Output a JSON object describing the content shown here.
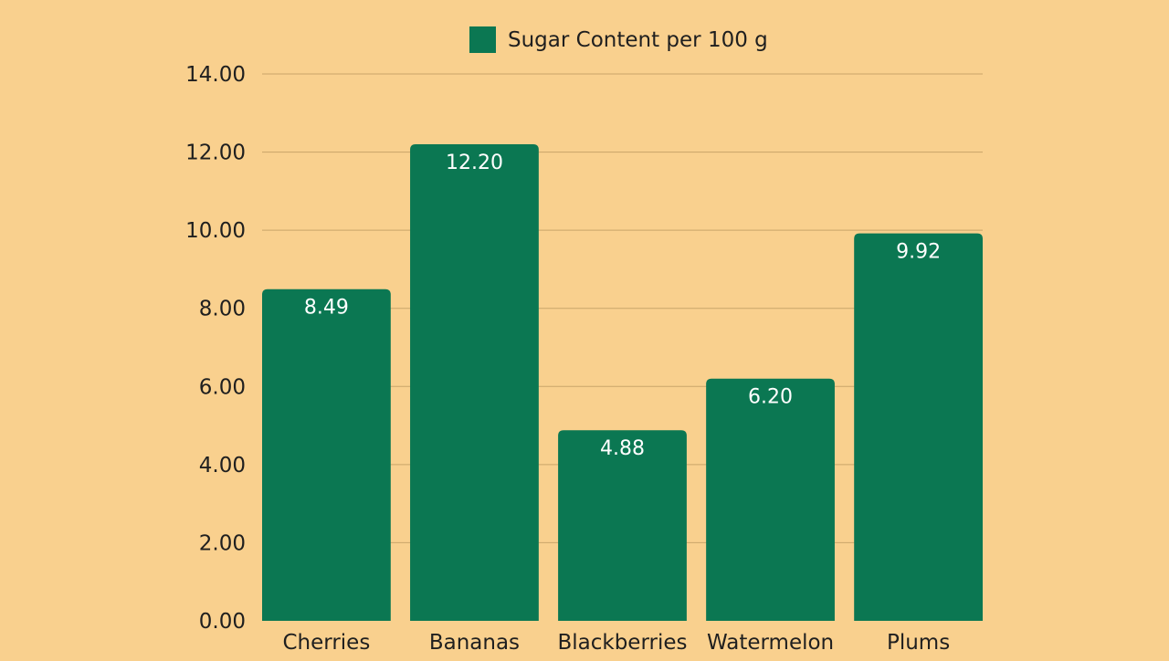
{
  "chart_data": {
    "type": "bar",
    "categories": [
      "Cherries",
      "Bananas",
      "Blackberries",
      "Watermelon",
      "Plums"
    ],
    "series": [
      {
        "name": "Sugar Content per 100 g",
        "values": [
          8.49,
          12.2,
          4.88,
          6.2,
          9.92
        ]
      }
    ],
    "data_labels": [
      "8.49",
      "12.20",
      "4.88",
      "6.20",
      "9.92"
    ],
    "y_ticks": [
      "0.00",
      "2.00",
      "4.00",
      "6.00",
      "8.00",
      "10.00",
      "12.00",
      "14.00"
    ],
    "ylim": [
      0,
      14
    ],
    "y_tick_step": 2,
    "grid": true,
    "legend_position": "top-center",
    "colors": {
      "background": "#F9D08E",
      "bar": "#0B7752",
      "grid": "#C9A56A",
      "text": "#1f1f1f",
      "data_label": "#ffffff"
    }
  }
}
